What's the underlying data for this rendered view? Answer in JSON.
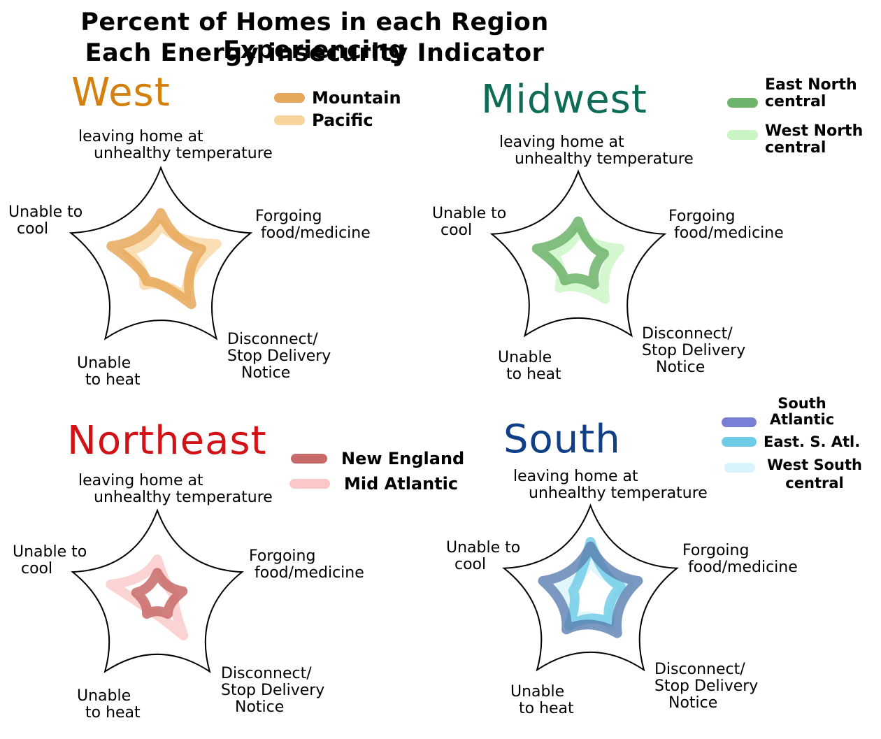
{
  "title_line1": "Percent of Homes in each Region Experiencing",
  "title_line2": "Each Energy insecurity Indicator",
  "axes": {
    "top_line1": "leaving home at",
    "top_line2": "unhealthy temperature",
    "right_line1": "Forgoing",
    "right_line2": "food/medicine",
    "lower_right_line1": "Disconnect/",
    "lower_right_line2": "Stop Delivery",
    "lower_right_line3": "Notice",
    "lower_left_line1": "Unable",
    "lower_left_line2": "to heat",
    "left_line1": "Unable to",
    "left_line2": "cool"
  },
  "chart_data": [
    {
      "type": "radar",
      "title": "West",
      "title_color": "#d4800f",
      "categories": [
        "leaving home at unhealthy temperature",
        "Forgoing food/medicine",
        "Disconnect/Stop Delivery Notice",
        "Unable to heat",
        "Unable to cool"
      ],
      "series": [
        {
          "name": "Mountain",
          "color": "#e6a85a",
          "opacity": 0.85,
          "values": [
            0.52,
            0.45,
            0.55,
            0.25,
            0.55
          ]
        },
        {
          "name": "Pacific",
          "color": "#f8d39c",
          "opacity": 0.75,
          "values": [
            0.4,
            0.62,
            0.45,
            0.3,
            0.38
          ]
        }
      ]
    },
    {
      "type": "radar",
      "title": "Midwest",
      "title_color": "#0e6b55",
      "categories": [
        "leaving home at unhealthy temperature",
        "Forgoing food/medicine",
        "Disconnect/Stop Delivery Notice",
        "Unable to heat",
        "Unable to cool"
      ],
      "series": [
        {
          "name": "East North Central",
          "color": "#6db36b",
          "opacity": 0.85,
          "values": [
            0.45,
            0.3,
            0.3,
            0.25,
            0.48
          ]
        },
        {
          "name": "West North Central",
          "color": "#c9f5c4",
          "opacity": 0.8,
          "values": [
            0.35,
            0.48,
            0.5,
            0.35,
            0.3
          ]
        }
      ]
    },
    {
      "type": "radar",
      "title": "Northeast",
      "title_color": "#d31216",
      "categories": [
        "leaving home at unhealthy temperature",
        "Forgoing food/medicine",
        "Disconnect/Stop Delivery Notice",
        "Unable to heat",
        "Unable to cool"
      ],
      "series": [
        {
          "name": "New England",
          "color": "#c96a6a",
          "opacity": 0.85,
          "values": [
            0.3,
            0.3,
            0.2,
            0.2,
            0.25
          ]
        },
        {
          "name": "Mid Atlantic",
          "color": "#fbc8c8",
          "opacity": 0.8,
          "values": [
            0.45,
            0.2,
            0.5,
            0.15,
            0.55
          ]
        }
      ]
    },
    {
      "type": "radar",
      "title": "South",
      "title_color": "#0f3f86",
      "categories": [
        "leaving home at unhealthy temperature",
        "Forgoing food/medicine",
        "Disconnect/Stop Delivery Notice",
        "Unable to heat",
        "Unable to cool"
      ],
      "series": [
        {
          "name": "South Atlantic",
          "color": "#5a7fb0",
          "opacity": 0.8,
          "values": [
            0.55,
            0.55,
            0.5,
            0.45,
            0.55
          ]
        },
        {
          "name": "East. S. Atl.",
          "color": "#6ccbe6",
          "opacity": 0.8,
          "values": [
            0.6,
            0.35,
            0.35,
            0.4,
            0.2
          ]
        },
        {
          "name": "West South Central",
          "color": "#d8f3fb",
          "opacity": 0.8,
          "values": [
            0.4,
            0.45,
            0.4,
            0.3,
            0.35
          ]
        }
      ]
    }
  ],
  "legend_labels": {
    "west": [
      "Mountain",
      "Pacific"
    ],
    "midwest": [
      "East North central",
      "West North central"
    ],
    "northeast": [
      "New England",
      "Mid Atlantic"
    ],
    "south": [
      "South Atlantic",
      "East. S. Atl.",
      "West South central"
    ]
  }
}
